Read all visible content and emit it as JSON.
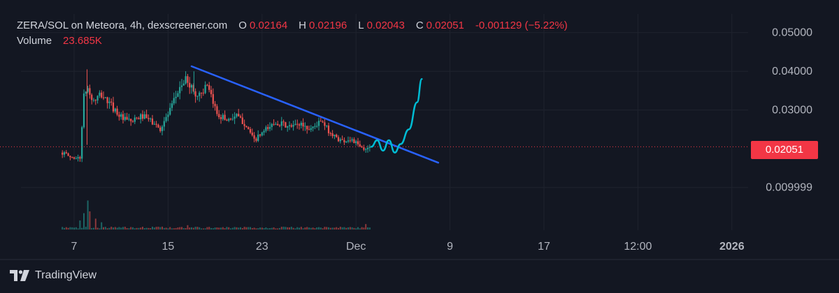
{
  "legend": {
    "title": "ZERA/SOL on Meteora, 4h, dexscreener.com",
    "o_label": "O",
    "o_value": "0.02164",
    "h_label": "H",
    "h_value": "0.02196",
    "l_label": "L",
    "l_value": "0.02043",
    "c_label": "C",
    "c_value": "0.02051",
    "change": "-0.001129 (−5.22%)",
    "volume_label": "Volume",
    "volume_value": "23.685K"
  },
  "price_tag": "0.02051",
  "footer": {
    "brand": "TradingView",
    "logo_icon": "tradingview-logo-icon"
  },
  "colors": {
    "up": "#26a69a",
    "down": "#ef5350",
    "trendline": "#2962ff",
    "projection": "#00bcd4",
    "last_price": "#f23645"
  },
  "chart_data": {
    "type": "candlestick",
    "title": "ZERA/SOL on Meteora, 4h, dexscreener.com",
    "x_tick_labels": [
      "7",
      "15",
      "23",
      "Dec",
      "9",
      "17",
      "12:00",
      "2026"
    ],
    "y_tick_labels": [
      "0.05000",
      "0.04000",
      "0.03000",
      "0.009999"
    ],
    "ylim": [
      0.004,
      0.054
    ],
    "last_price": 0.02051,
    "price_path": [
      [
        6.0,
        0.019
      ],
      [
        6.7,
        0.0178
      ],
      [
        7.5,
        0.0175
      ],
      [
        7.8,
        0.033
      ],
      [
        8.1,
        0.036
      ],
      [
        8.6,
        0.032
      ],
      [
        9.3,
        0.034
      ],
      [
        10.2,
        0.031
      ],
      [
        11.2,
        0.0275
      ],
      [
        12.0,
        0.027
      ],
      [
        12.8,
        0.0285
      ],
      [
        13.6,
        0.027
      ],
      [
        14.3,
        0.025
      ],
      [
        15.2,
        0.03
      ],
      [
        16.0,
        0.036
      ],
      [
        16.6,
        0.038
      ],
      [
        17.4,
        0.0335
      ],
      [
        18.3,
        0.036
      ],
      [
        19.2,
        0.029
      ],
      [
        20.0,
        0.0275
      ],
      [
        20.8,
        0.0285
      ],
      [
        21.7,
        0.026
      ],
      [
        22.3,
        0.022
      ],
      [
        23.2,
        0.0245
      ],
      [
        24.2,
        0.027
      ],
      [
        25.3,
        0.0255
      ],
      [
        26.3,
        0.0265
      ],
      [
        27.0,
        0.025
      ],
      [
        28.0,
        0.027
      ],
      [
        29.0,
        0.0235
      ],
      [
        29.8,
        0.022
      ],
      [
        30.6,
        0.0225
      ],
      [
        31.3,
        0.0205
      ],
      [
        31.8,
        0.0195
      ],
      [
        32.1,
        0.021
      ],
      [
        32.3,
        0.0205
      ]
    ],
    "volume_spikes": [
      [
        7.8,
        0.45
      ],
      [
        8.1,
        0.8
      ],
      [
        8.4,
        0.5
      ],
      [
        8.8,
        0.3
      ],
      [
        7.5,
        0.25
      ],
      [
        9.3,
        0.2
      ],
      [
        16.6,
        0.12
      ],
      [
        31.8,
        0.15
      ]
    ],
    "trendline": [
      [
        17.0,
        0.0413
      ],
      [
        38.0,
        0.0164
      ]
    ],
    "projection": [
      [
        32.3,
        0.0205
      ],
      [
        32.8,
        0.0222
      ],
      [
        33.3,
        0.0195
      ],
      [
        33.8,
        0.0222
      ],
      [
        34.3,
        0.019
      ],
      [
        34.8,
        0.0212
      ],
      [
        35.5,
        0.025
      ],
      [
        36.2,
        0.032
      ],
      [
        36.6,
        0.038
      ]
    ]
  }
}
